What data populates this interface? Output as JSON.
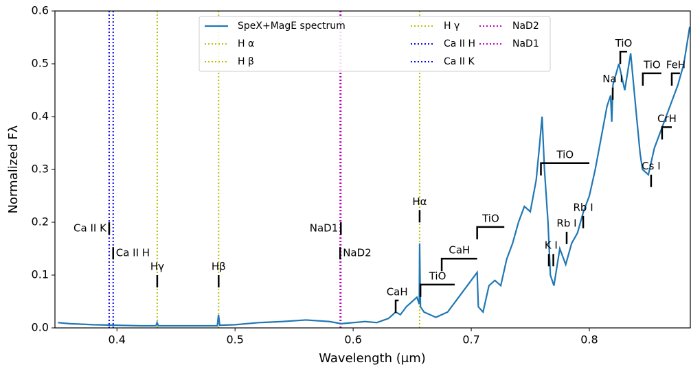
{
  "chart_data": {
    "type": "line",
    "xlabel": "Wavelength (μm)",
    "ylabel": "Normalized Fλ",
    "xlim": [
      0.3475,
      0.8855
    ],
    "ylim": [
      0,
      0.6
    ],
    "xticks": [
      0.4,
      0.5,
      0.6,
      0.7,
      0.8
    ],
    "yticks": [
      {
        "value": 0,
        "label": "0.0"
      },
      0.1,
      0.2,
      0.3,
      0.4,
      0.5,
      0.6
    ],
    "x": [
      0.35,
      0.36,
      0.38,
      0.4,
      0.42,
      0.433,
      0.434,
      0.435,
      0.46,
      0.485,
      0.486,
      0.487,
      0.5,
      0.52,
      0.54,
      0.56,
      0.58,
      0.59,
      0.6,
      0.61,
      0.62,
      0.63,
      0.636,
      0.64,
      0.645,
      0.65,
      0.654,
      0.656,
      0.6563,
      0.657,
      0.66,
      0.67,
      0.68,
      0.69,
      0.7,
      0.705,
      0.706,
      0.71,
      0.715,
      0.72,
      0.725,
      0.73,
      0.735,
      0.74,
      0.745,
      0.75,
      0.755,
      0.758,
      0.76,
      0.762,
      0.765,
      0.767,
      0.77,
      0.775,
      0.78,
      0.785,
      0.79,
      0.795,
      0.8,
      0.805,
      0.81,
      0.815,
      0.818,
      0.819,
      0.82,
      0.825,
      0.83,
      0.835,
      0.84,
      0.843,
      0.845,
      0.85,
      0.855,
      0.86,
      0.865,
      0.87,
      0.875,
      0.88,
      0.885
    ],
    "series": [
      {
        "name": "SpeX+MagE spectrum",
        "color": "#1f77b4",
        "values": [
          0.01,
          0.008,
          0.006,
          0.005,
          0.004,
          0.004,
          0.01,
          0.004,
          0.004,
          0.004,
          0.025,
          0.005,
          0.006,
          0.01,
          0.012,
          0.015,
          0.012,
          0.008,
          0.01,
          0.012,
          0.01,
          0.018,
          0.03,
          0.025,
          0.04,
          0.05,
          0.058,
          0.045,
          0.16,
          0.04,
          0.03,
          0.02,
          0.03,
          0.06,
          0.09,
          0.105,
          0.04,
          0.03,
          0.08,
          0.09,
          0.08,
          0.13,
          0.16,
          0.2,
          0.23,
          0.22,
          0.28,
          0.35,
          0.4,
          0.3,
          0.2,
          0.1,
          0.08,
          0.15,
          0.12,
          0.16,
          0.18,
          0.22,
          0.25,
          0.3,
          0.36,
          0.42,
          0.44,
          0.39,
          0.46,
          0.5,
          0.45,
          0.52,
          0.4,
          0.33,
          0.3,
          0.29,
          0.34,
          0.37,
          0.4,
          0.43,
          0.46,
          0.5,
          0.57
        ]
      }
    ],
    "vlines": [
      {
        "name": "H α",
        "x": 0.6563,
        "color": "#bfbf00"
      },
      {
        "name": "H β",
        "x": 0.4861,
        "color": "#bfbf00"
      },
      {
        "name": "H γ",
        "x": 0.4341,
        "color": "#bfbf00"
      },
      {
        "name": "Ca II H",
        "x": 0.3968,
        "color": "#0000ff"
      },
      {
        "name": "Ca II K",
        "x": 0.3934,
        "color": "#0000ff"
      },
      {
        "name": "NaD2",
        "x": 0.589,
        "color": "#bf00bf"
      },
      {
        "name": "NaD1",
        "x": 0.5896,
        "color": "#bf00bf"
      }
    ],
    "annotations": [
      {
        "label": "Ca II K",
        "x": 0.3934,
        "y": 0.2,
        "style": "tick",
        "side": "left"
      },
      {
        "label": "Ca II H",
        "x": 0.3968,
        "y": 0.153,
        "style": "tick",
        "side": "right"
      },
      {
        "label": "Hγ",
        "x": 0.4341,
        "y": 0.1,
        "style": "tick",
        "side": "above"
      },
      {
        "label": "Hβ",
        "x": 0.4861,
        "y": 0.1,
        "style": "tick",
        "side": "above"
      },
      {
        "label": "NaD1",
        "x": 0.5896,
        "y": 0.2,
        "style": "tick",
        "side": "left"
      },
      {
        "label": "NaD2",
        "x": 0.589,
        "y": 0.153,
        "style": "tick",
        "side": "right"
      },
      {
        "label": "Hα",
        "x": 0.6563,
        "y": 0.223,
        "style": "tick",
        "side": "above"
      },
      {
        "label": "CaH",
        "x": 0.636,
        "x2": 0.6385,
        "y": 0.052,
        "style": "bracket",
        "side": "above"
      },
      {
        "label": "TiO",
        "x": 0.657,
        "x2": 0.686,
        "y": 0.082,
        "style": "bracket",
        "side": "above"
      },
      {
        "label": "CaH",
        "x": 0.675,
        "x2": 0.705,
        "y": 0.131,
        "style": "bracket",
        "side": "above"
      },
      {
        "label": "TiO",
        "x": 0.705,
        "x2": 0.728,
        "y": 0.191,
        "style": "bracket",
        "side": "above"
      },
      {
        "label": "TiO",
        "x": 0.759,
        "x2": 0.8,
        "y": 0.312,
        "style": "bracket",
        "side": "above"
      },
      {
        "label": "K I",
        "x": 0.7657,
        "x2": 0.7695,
        "y": 0.14,
        "style": "pair",
        "side": "above"
      },
      {
        "label": "Rb I",
        "x": 0.7808,
        "y": 0.182,
        "style": "tick",
        "side": "above"
      },
      {
        "label": "Rb I",
        "x": 0.7948,
        "y": 0.212,
        "style": "tick",
        "side": "above"
      },
      {
        "label": "Na I",
        "x": 0.8198,
        "y": 0.455,
        "style": "tick",
        "side": "above"
      },
      {
        "label": "TiO",
        "x": 0.8262,
        "x2": 0.832,
        "y": 0.523,
        "style": "bracket",
        "side": "above"
      },
      {
        "label": "TiO",
        "x": 0.8453,
        "x2": 0.861,
        "y": 0.482,
        "style": "bracket",
        "side": "above"
      },
      {
        "label": "FeH",
        "x": 0.8698,
        "x2": 0.8767,
        "y": 0.482,
        "style": "bracket",
        "side": "above"
      },
      {
        "label": "CrH",
        "x": 0.8616,
        "x2": 0.8698,
        "y": 0.38,
        "style": "bracket",
        "side": "above"
      },
      {
        "label": "Cs I",
        "x": 0.8523,
        "y": 0.29,
        "style": "tick",
        "side": "above"
      }
    ]
  }
}
